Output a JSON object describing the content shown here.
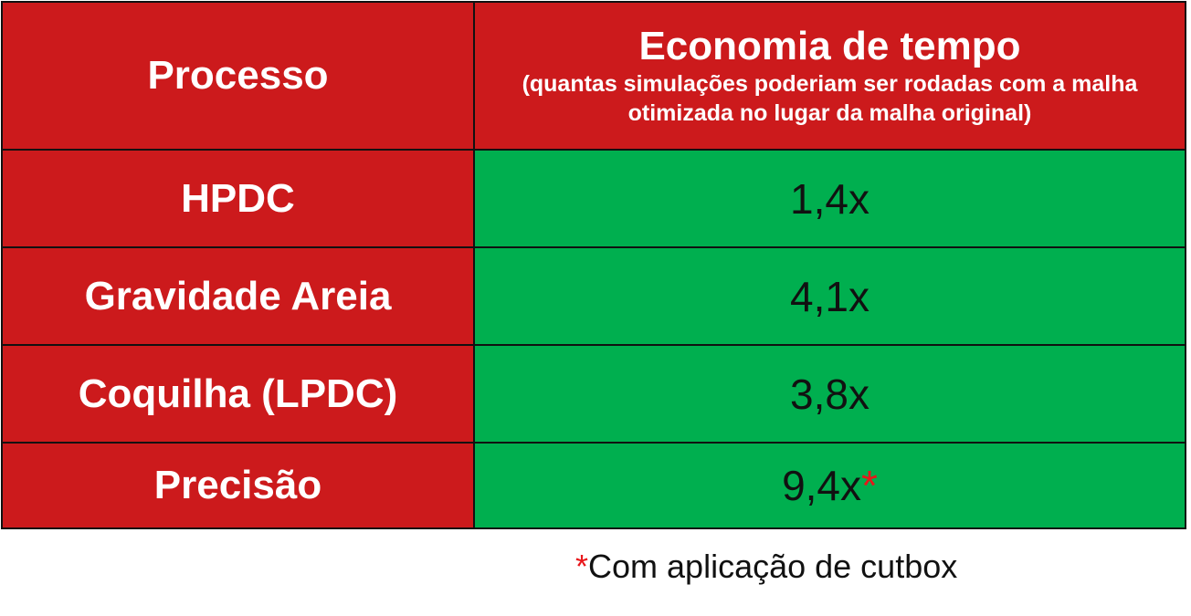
{
  "header": {
    "col1": "Processo",
    "col2_title": "Economia de tempo",
    "col2_subtitle": "(quantas simulações poderiam ser rodadas com a malha otimizada no lugar da malha original)"
  },
  "rows": [
    {
      "process": "HPDC",
      "value": "1,4x",
      "mark": ""
    },
    {
      "process": "Gravidade Areia",
      "value": "4,1x",
      "mark": ""
    },
    {
      "process": "Coquilha (LPDC)",
      "value": "3,8x",
      "mark": ""
    },
    {
      "process": "Precisão",
      "value": "9,4x",
      "mark": "*"
    }
  ],
  "footnote": {
    "mark": "*",
    "text": "Com aplicação de cutbox"
  },
  "colors": {
    "header_red": "#cc1a1c",
    "value_green": "#00af4f",
    "star_red": "#e8161a"
  }
}
